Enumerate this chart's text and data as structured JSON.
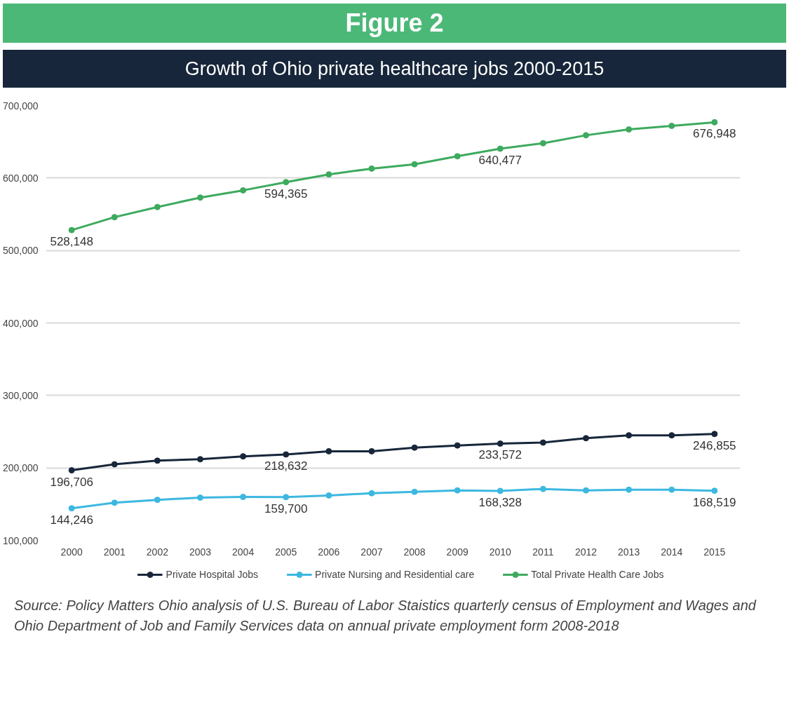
{
  "chart_data": {
    "type": "line",
    "title": "Figure 2",
    "subtitle": "Growth of Ohio private healthcare jobs 2000-2015",
    "categories": [
      "2000",
      "2001",
      "2002",
      "2003",
      "2004",
      "2005",
      "2006",
      "2007",
      "2008",
      "2009",
      "2010",
      "2011",
      "2012",
      "2013",
      "2014",
      "2015"
    ],
    "series": [
      {
        "name": "Private Hospital Jobs",
        "color": "#17263a",
        "values": [
          196706,
          205000,
          210000,
          212000,
          216000,
          218632,
          223000,
          223000,
          228000,
          231000,
          233572,
          235000,
          241000,
          245000,
          245000,
          246855
        ],
        "value_labels": [
          "196,706",
          null,
          null,
          null,
          null,
          "218,632",
          null,
          null,
          null,
          null,
          "233,572",
          null,
          null,
          null,
          null,
          "246,855"
        ]
      },
      {
        "name": "Private Nursing and Residential care",
        "color": "#3cb8e0",
        "values": [
          144246,
          152000,
          156000,
          159000,
          160000,
          159700,
          162000,
          165000,
          167000,
          169000,
          168328,
          171000,
          169000,
          170000,
          170000,
          168519
        ],
        "value_labels": [
          "144,246",
          null,
          null,
          null,
          null,
          "159,700",
          null,
          null,
          null,
          null,
          "168,328",
          null,
          null,
          null,
          null,
          "168,519"
        ]
      },
      {
        "name": "Total Private Health Care Jobs",
        "color": "#3daa5e",
        "values": [
          528148,
          546000,
          560000,
          573000,
          583000,
          594365,
          605000,
          613000,
          619000,
          630000,
          640477,
          648000,
          659000,
          667000,
          672000,
          676948
        ],
        "value_labels": [
          "528,148",
          null,
          null,
          null,
          null,
          "594,365",
          null,
          null,
          null,
          null,
          "640,477",
          null,
          null,
          null,
          null,
          "676,948"
        ]
      }
    ],
    "ylim": [
      100000,
      700000
    ],
    "yticks": [
      {
        "value": 100000,
        "label": "100,000"
      },
      {
        "value": 200000,
        "label": "200,000"
      },
      {
        "value": 300000,
        "label": "300,000"
      },
      {
        "value": 400000,
        "label": "400,000"
      },
      {
        "value": 500000,
        "label": "500,000"
      },
      {
        "value": 600000,
        "label": "600,000"
      },
      {
        "value": 700000,
        "label": "700,000"
      }
    ],
    "grid": "y",
    "legend": "bottom",
    "marker": "circle",
    "line_style": "solid",
    "annotations": [
      "Source: Policy Matters Ohio analysis of U.S. Bureau of Labor Staistics quarterly census of Employment and Wages and Ohio Department of Job and Family Services data on annual private employment form 2008-2018"
    ]
  }
}
